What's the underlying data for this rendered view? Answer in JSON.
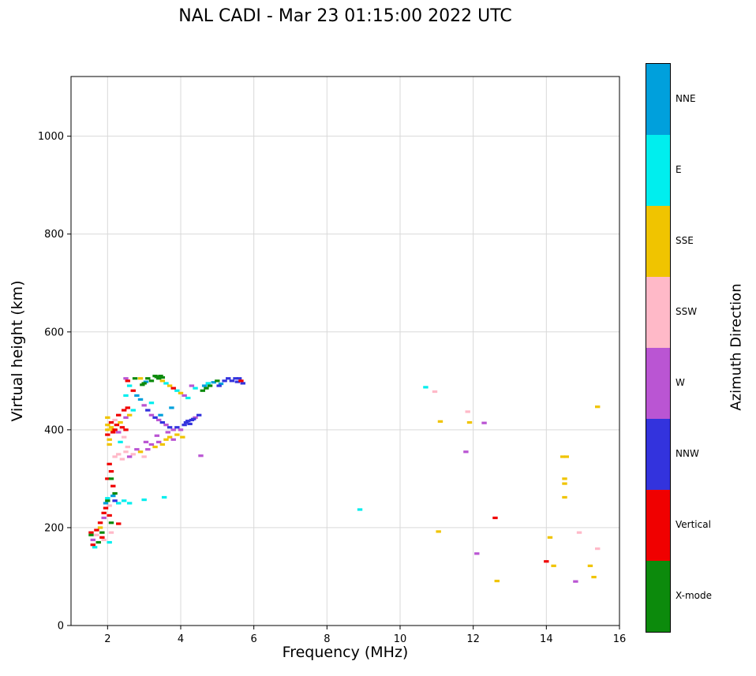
{
  "chart_data": {
    "type": "scatter",
    "title": "NAL CADI - Mar 23 01:15:00 2022 UTC",
    "xlabel": "Frequency (MHz)",
    "ylabel": "Virtual height (km)",
    "xlim": [
      1,
      16
    ],
    "ylim": [
      0,
      1122
    ],
    "xticks": [
      2,
      4,
      6,
      8,
      10,
      12,
      14,
      16
    ],
    "yticks": [
      0,
      200,
      400,
      600,
      800,
      1000
    ],
    "grid": true,
    "grid_color": "#d9d9d9",
    "marker": "horizontal-dash",
    "colorbar": {
      "label": "Azimuth Direction",
      "position": "right",
      "categories_top_to_bottom": [
        "NNE",
        "E",
        "SSE",
        "SSW",
        "W",
        "NNW",
        "Vertical",
        "X-mode"
      ]
    },
    "series": [
      {
        "name": "NNE",
        "color": "#00A0DC",
        "points": [
          [
            1.95,
            250
          ],
          [
            2.15,
            265
          ],
          [
            2.8,
            470
          ],
          [
            2.9,
            462
          ],
          [
            3.05,
            498
          ],
          [
            3.45,
            430
          ],
          [
            3.75,
            445
          ],
          [
            4.65,
            490
          ],
          [
            4.9,
            497
          ],
          [
            5.1,
            494
          ]
        ]
      },
      {
        "name": "E",
        "color": "#00EEEE",
        "points": [
          [
            1.65,
            160
          ],
          [
            2.0,
            260
          ],
          [
            2.05,
            170
          ],
          [
            2.3,
            250
          ],
          [
            2.35,
            375
          ],
          [
            2.45,
            255
          ],
          [
            2.5,
            470
          ],
          [
            2.6,
            250
          ],
          [
            2.6,
            490
          ],
          [
            2.7,
            440
          ],
          [
            3.0,
            257
          ],
          [
            3.2,
            455
          ],
          [
            3.55,
            262
          ],
          [
            3.6,
            495
          ],
          [
            3.9,
            480
          ],
          [
            4.2,
            465
          ],
          [
            4.4,
            485
          ],
          [
            4.75,
            495
          ],
          [
            8.9,
            237
          ],
          [
            10.7,
            487
          ]
        ]
      },
      {
        "name": "SSE",
        "color": "#F0C400",
        "points": [
          [
            1.8,
            200
          ],
          [
            2.0,
            400
          ],
          [
            2.0,
            410
          ],
          [
            2.0,
            425
          ],
          [
            2.05,
            370
          ],
          [
            2.05,
            380
          ],
          [
            2.1,
            405
          ],
          [
            2.15,
            400
          ],
          [
            2.35,
            415
          ],
          [
            2.6,
            430
          ],
          [
            2.9,
            355
          ],
          [
            2.9,
            505
          ],
          [
            3.3,
            365
          ],
          [
            3.5,
            370
          ],
          [
            3.5,
            500
          ],
          [
            3.6,
            380
          ],
          [
            3.7,
            385
          ],
          [
            3.7,
            490
          ],
          [
            3.9,
            390
          ],
          [
            4.0,
            475
          ],
          [
            4.05,
            385
          ],
          [
            11.05,
            192
          ],
          [
            11.1,
            417
          ],
          [
            11.9,
            415
          ],
          [
            12.65,
            91
          ],
          [
            14.1,
            180
          ],
          [
            14.2,
            122
          ],
          [
            14.45,
            345
          ],
          [
            14.55,
            345
          ],
          [
            14.5,
            300
          ],
          [
            14.5,
            290
          ],
          [
            14.5,
            262
          ],
          [
            15.2,
            122
          ],
          [
            15.3,
            99
          ],
          [
            15.4,
            447
          ]
        ]
      },
      {
        "name": "SSW",
        "color": "#FFB9C8",
        "points": [
          [
            1.7,
            185
          ],
          [
            1.9,
            175
          ],
          [
            2.05,
            245
          ],
          [
            2.1,
            190
          ],
          [
            2.2,
            345
          ],
          [
            2.2,
            420
          ],
          [
            2.3,
            350
          ],
          [
            2.4,
            340
          ],
          [
            2.45,
            385
          ],
          [
            2.5,
            355
          ],
          [
            2.55,
            365
          ],
          [
            2.7,
            350
          ],
          [
            3.0,
            345
          ],
          [
            10.95,
            478
          ],
          [
            11.85,
            437
          ],
          [
            14.9,
            190
          ],
          [
            15.4,
            157
          ]
        ]
      },
      {
        "name": "W",
        "color": "#BA55D3",
        "points": [
          [
            1.6,
            175
          ],
          [
            1.9,
            220
          ],
          [
            2.3,
            395
          ],
          [
            2.5,
            425
          ],
          [
            2.5,
            505
          ],
          [
            2.6,
            345
          ],
          [
            2.8,
            360
          ],
          [
            3.0,
            450
          ],
          [
            3.05,
            375
          ],
          [
            3.1,
            360
          ],
          [
            3.2,
            370
          ],
          [
            3.2,
            430
          ],
          [
            3.35,
            388
          ],
          [
            3.4,
            375
          ],
          [
            3.4,
            420
          ],
          [
            3.6,
            410
          ],
          [
            3.65,
            395
          ],
          [
            3.8,
            380
          ],
          [
            3.8,
            400
          ],
          [
            4.0,
            400
          ],
          [
            4.1,
            470
          ],
          [
            4.3,
            490
          ],
          [
            4.4,
            425
          ],
          [
            4.55,
            347
          ],
          [
            11.8,
            355
          ],
          [
            12.1,
            147
          ],
          [
            12.3,
            414
          ],
          [
            14.8,
            90
          ]
        ]
      },
      {
        "name": "NNW",
        "color": "#3333DD",
        "points": [
          [
            2.2,
            255
          ],
          [
            3.1,
            440
          ],
          [
            3.3,
            425
          ],
          [
            3.5,
            415
          ],
          [
            3.7,
            405
          ],
          [
            3.9,
            405
          ],
          [
            4.1,
            410
          ],
          [
            4.15,
            415
          ],
          [
            4.2,
            418
          ],
          [
            4.25,
            412
          ],
          [
            4.3,
            420
          ],
          [
            4.35,
            422
          ],
          [
            4.5,
            430
          ],
          [
            5.05,
            490
          ],
          [
            5.2,
            500
          ],
          [
            5.3,
            505
          ],
          [
            5.4,
            500
          ],
          [
            5.5,
            505
          ],
          [
            5.55,
            498
          ],
          [
            5.6,
            505
          ],
          [
            5.7,
            495
          ]
        ]
      },
      {
        "name": "Vertical",
        "color": "#F00000",
        "points": [
          [
            1.55,
            190
          ],
          [
            1.6,
            165
          ],
          [
            1.7,
            195
          ],
          [
            1.8,
            210
          ],
          [
            1.85,
            180
          ],
          [
            1.9,
            230
          ],
          [
            1.95,
            240
          ],
          [
            2.0,
            300
          ],
          [
            2.0,
            390
          ],
          [
            2.05,
            225
          ],
          [
            2.05,
            330
          ],
          [
            2.1,
            315
          ],
          [
            2.1,
            415
          ],
          [
            2.15,
            285
          ],
          [
            2.15,
            395
          ],
          [
            2.2,
            400
          ],
          [
            2.25,
            410
          ],
          [
            2.3,
            208
          ],
          [
            2.3,
            430
          ],
          [
            2.4,
            405
          ],
          [
            2.45,
            440
          ],
          [
            2.5,
            400
          ],
          [
            2.55,
            445
          ],
          [
            2.55,
            500
          ],
          [
            2.7,
            480
          ],
          [
            3.8,
            485
          ],
          [
            5.65,
            500
          ],
          [
            12.6,
            220
          ],
          [
            14.0,
            131
          ]
        ]
      },
      {
        "name": "X-mode",
        "color": "#0C8A0C",
        "points": [
          [
            1.55,
            185
          ],
          [
            1.75,
            170
          ],
          [
            1.85,
            190
          ],
          [
            2.0,
            255
          ],
          [
            2.1,
            210
          ],
          [
            2.1,
            300
          ],
          [
            2.2,
            270
          ],
          [
            2.75,
            505
          ],
          [
            2.95,
            492
          ],
          [
            3.0,
            495
          ],
          [
            3.1,
            505
          ],
          [
            3.2,
            500
          ],
          [
            3.3,
            510
          ],
          [
            3.35,
            508
          ],
          [
            3.4,
            505
          ],
          [
            3.45,
            510
          ],
          [
            3.5,
            507
          ],
          [
            4.6,
            480
          ],
          [
            4.7,
            485
          ],
          [
            4.8,
            490
          ],
          [
            5.0,
            500
          ]
        ]
      }
    ]
  }
}
